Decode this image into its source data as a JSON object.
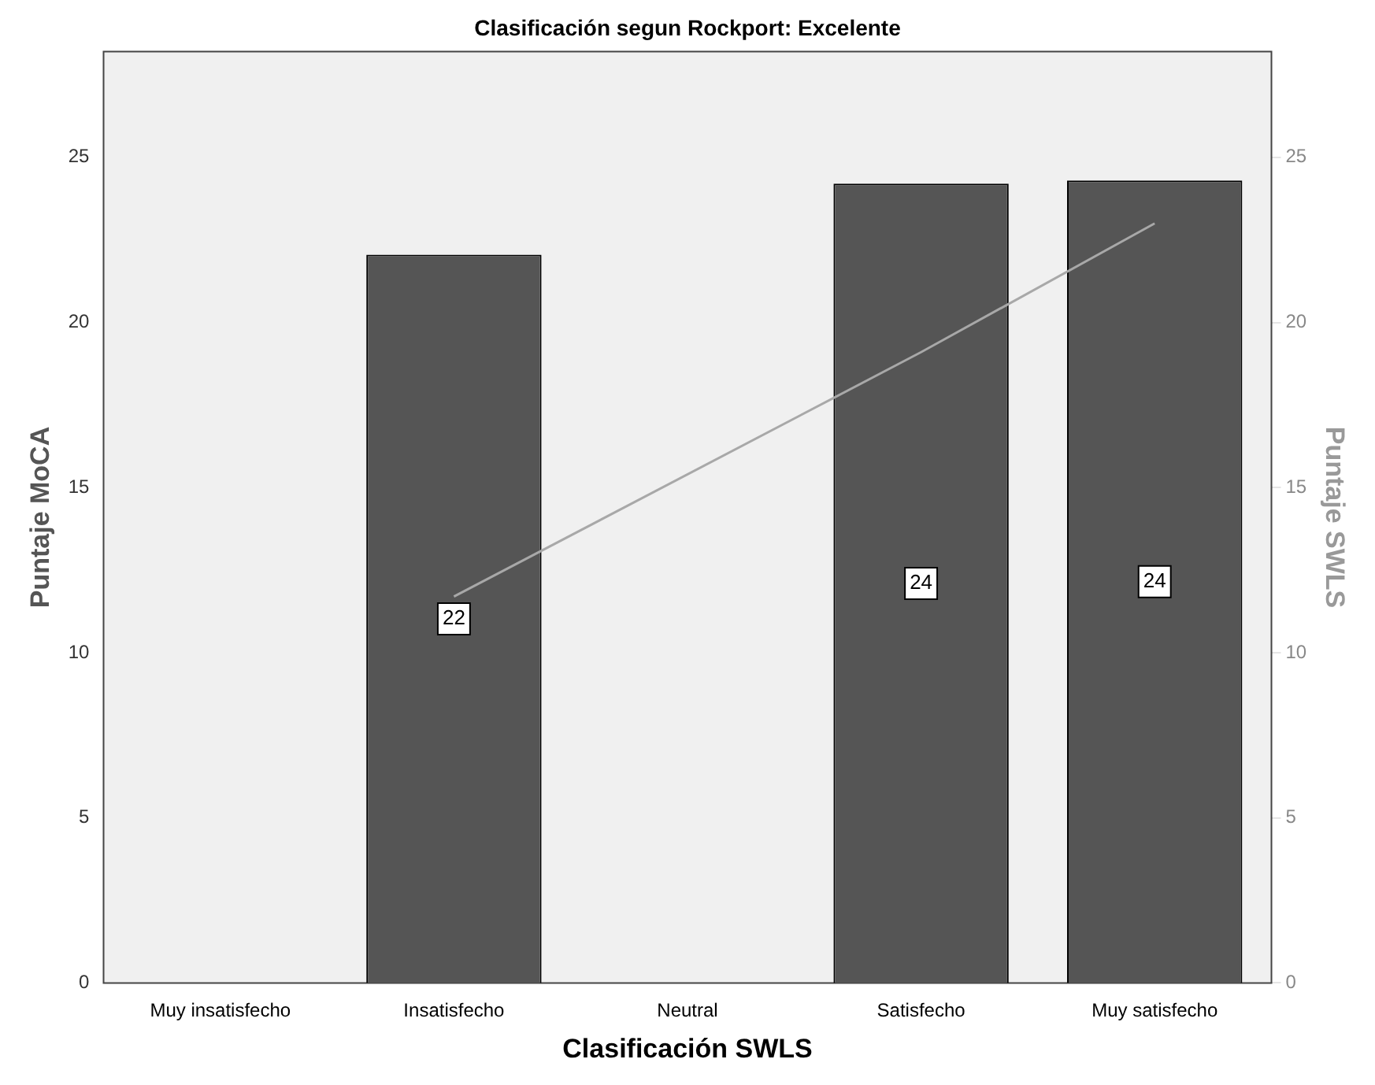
{
  "chart_data": {
    "type": "bar",
    "title": "Clasificación segun Rockport: Excelente",
    "xlabel": "Clasificación SWLS",
    "ylabel": "Puntaje MoCA",
    "y2label": "Puntaje SWLS",
    "categories": [
      "Muy insatisfecho",
      "Insatisfecho",
      "Neutral",
      "Satisfecho",
      "Muy satisfecho"
    ],
    "series": [
      {
        "color": "#555555",
        "values": [
          null,
          22.05,
          null,
          24.2,
          24.3
        ],
        "value_labels": [
          null,
          "22",
          null,
          "24",
          "24"
        ]
      },
      {
        "type": "line",
        "axis": "y2",
        "color": "#a8a8a8",
        "values": [
          null,
          11.7,
          null,
          19.1,
          23
        ]
      }
    ],
    "ylim": [
      0,
      28.2
    ],
    "yticks": [
      0,
      5,
      10,
      15,
      20,
      25
    ],
    "y2lim": [
      0,
      28.2
    ],
    "y2ticks": [
      0,
      5,
      10,
      15,
      20,
      25
    ],
    "grid": false,
    "legend": false,
    "marker": "none"
  }
}
